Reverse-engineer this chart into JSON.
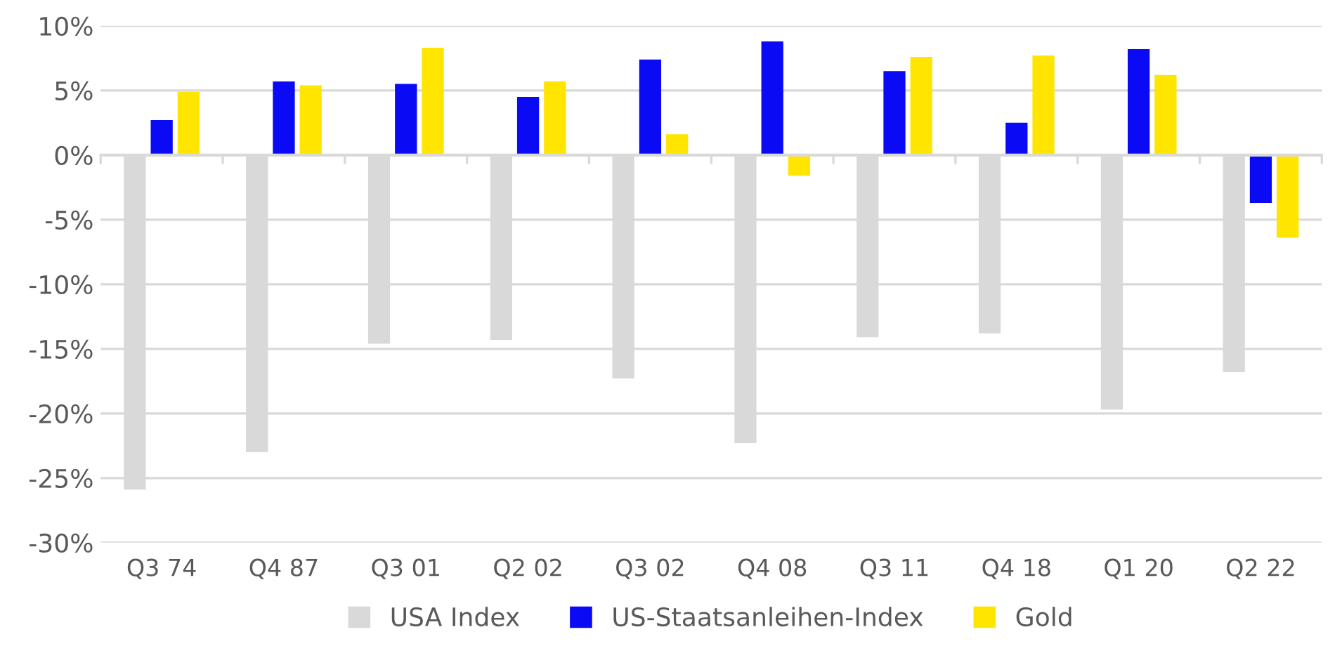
{
  "chart_data": {
    "type": "bar",
    "categories": [
      "Q3 74",
      "Q4 87",
      "Q3 01",
      "Q2 02",
      "Q3 02",
      "Q4 08",
      "Q3 11",
      "Q4 18",
      "Q1 20",
      "Q2 22"
    ],
    "series": [
      {
        "name": "USA Index",
        "color": "#d9d9d9",
        "values": [
          -25.9,
          -23.0,
          -14.6,
          -14.3,
          -17.3,
          -22.3,
          -14.1,
          -13.8,
          -19.7,
          -16.8
        ]
      },
      {
        "name": "US-Staatsanleihen-Index",
        "color": "#0a0af5",
        "values": [
          2.7,
          5.7,
          5.5,
          4.5,
          7.4,
          8.8,
          6.5,
          2.5,
          8.2,
          -3.7
        ]
      },
      {
        "name": "Gold",
        "color": "#ffe500",
        "values": [
          4.9,
          5.4,
          8.3,
          5.7,
          1.6,
          -1.6,
          7.6,
          7.7,
          6.2,
          -6.4
        ]
      }
    ],
    "ylim": [
      -30,
      10
    ],
    "yticks": [
      {
        "value": -30,
        "label": "-30%"
      },
      {
        "value": -25,
        "label": "-25%"
      },
      {
        "value": -20,
        "label": "-20%"
      },
      {
        "value": -15,
        "label": "-15%"
      },
      {
        "value": -10,
        "label": "-10%"
      },
      {
        "value": -5,
        "label": "-5%"
      },
      {
        "value": 0,
        "label": "0%"
      },
      {
        "value": 5,
        "label": "5%"
      },
      {
        "value": 10,
        "label": "10%"
      }
    ],
    "grid": "y",
    "legend": "bottom"
  }
}
